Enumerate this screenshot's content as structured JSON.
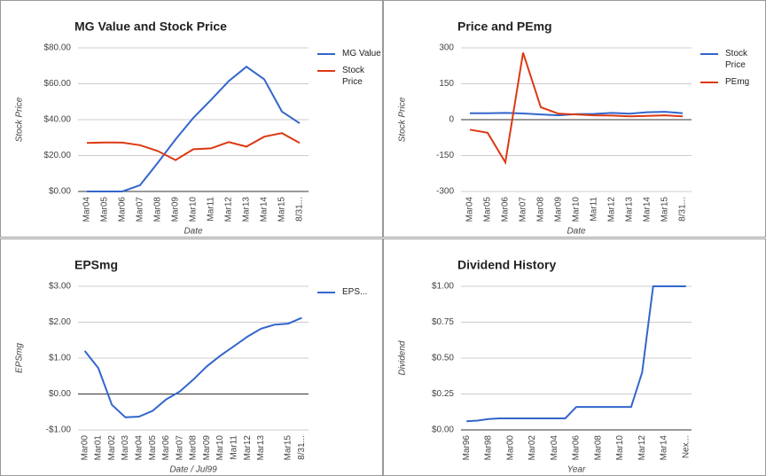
{
  "chart_data": [
    {
      "type": "line",
      "title": "MG Value and Stock Price",
      "x_label": "Date",
      "y_label": "Stock Price",
      "categories": [
        "Mar04",
        "Mar05",
        "Mar06",
        "Mar07",
        "Mar08",
        "Mar09",
        "Mar10",
        "Mar11",
        "Mar12",
        "Mar13",
        "Mar14",
        "Mar15",
        "8/31..."
      ],
      "series": [
        {
          "name": "MG Value",
          "color": "#3366cc",
          "values": [
            0,
            0,
            0,
            3.5,
            16,
            29,
            41,
            51,
            61.5,
            69.5,
            62.5,
            44.5,
            38
          ]
        },
        {
          "name": "Stock Price",
          "color": "#dc3912",
          "values": [
            27,
            27.3,
            27.2,
            25.8,
            22.5,
            17.5,
            23.5,
            24,
            27.5,
            25,
            30.5,
            32.5,
            27
          ]
        }
      ],
      "ylim": [
        0,
        80
      ],
      "yticks": [
        {
          "value": 0,
          "label": "$0.00"
        },
        {
          "value": 20,
          "label": "$20.00"
        },
        {
          "value": 40,
          "label": "$40.00"
        },
        {
          "value": 60,
          "label": "$60.00"
        },
        {
          "value": 80,
          "label": "$80.00"
        }
      ],
      "grid": true,
      "legend": "right"
    },
    {
      "type": "line",
      "title": "Price and PEmg",
      "x_label": "Date",
      "y_label": "Stock Price",
      "categories": [
        "Mar04",
        "Mar05",
        "Mar06",
        "Mar07",
        "Mar08",
        "Mar09",
        "Mar10",
        "Mar11",
        "Mar12",
        "Mar13",
        "Mar14",
        "Mar15",
        "8/31..."
      ],
      "series": [
        {
          "name": "Stock Price",
          "color": "#3366cc",
          "values": [
            27,
            27,
            28,
            26,
            22,
            18,
            23,
            24,
            28,
            25,
            31,
            33,
            27
          ]
        },
        {
          "name": "PEmg",
          "color": "#dc3912",
          "values": [
            -42,
            -55,
            -178,
            280,
            52,
            25,
            22,
            18,
            17,
            14,
            16,
            18,
            14
          ]
        }
      ],
      "ylim": [
        -300,
        300
      ],
      "yticks": [
        -300,
        -150,
        0,
        150,
        300
      ],
      "grid": true,
      "legend": "right"
    },
    {
      "type": "line",
      "title": "EPSmg",
      "x_label": "Date / Jul99",
      "y_label": "EPSmg",
      "categories": [
        "Mar00",
        "Mar01",
        "Mar02",
        "Mar03",
        "Mar04",
        "Mar05",
        "Mar06",
        "Mar07",
        "Mar08",
        "Mar09",
        "Mar10",
        "Mar11",
        "Mar12",
        "Mar13",
        null,
        "Mar15",
        "8/31..."
      ],
      "series": [
        {
          "name": "EPS...",
          "color": "#3366cc",
          "values": [
            1.2,
            0.72,
            -0.3,
            -0.65,
            -0.63,
            -0.47,
            -0.15,
            0.07,
            0.4,
            0.77,
            1.07,
            1.33,
            1.6,
            1.82,
            1.93,
            1.96,
            2.12
          ]
        }
      ],
      "ylim": [
        -1,
        3
      ],
      "yticks": [
        {
          "value": -1,
          "label": "-$1.00"
        },
        {
          "value": 0,
          "label": "$0.00"
        },
        {
          "value": 1,
          "label": "$1.00"
        },
        {
          "value": 2,
          "label": "$2.00"
        },
        {
          "value": 3,
          "label": "$3.00"
        }
      ],
      "grid": true,
      "legend": "right"
    },
    {
      "type": "line",
      "title": "Dividend History",
      "x_label": "Year",
      "y_label": "Dividend",
      "categories": [
        "Mar96",
        null,
        "Mar98",
        null,
        "Mar00",
        null,
        "Mar02",
        null,
        "Mar04",
        null,
        "Mar06",
        null,
        "Mar08",
        null,
        "Mar10",
        null,
        "Mar12",
        null,
        "Mar14",
        null,
        "Nex..."
      ],
      "series": [
        {
          "color": "#3366cc",
          "values": [
            0.06,
            0.065,
            0.075,
            0.08,
            0.08,
            0.08,
            0.08,
            0.08,
            0.08,
            0.08,
            0.16,
            0.16,
            0.16,
            0.16,
            0.16,
            0.16,
            0.4,
            1,
            1,
            1,
            1
          ]
        }
      ],
      "ylim": [
        0,
        1
      ],
      "yticks": [
        {
          "value": 0,
          "label": "$0.00"
        },
        {
          "value": 0.25,
          "label": "$0.25"
        },
        {
          "value": 0.5,
          "label": "$0.50"
        },
        {
          "value": 0.75,
          "label": "$0.75"
        },
        {
          "value": 1,
          "label": "$1.00"
        }
      ],
      "grid": true
    }
  ]
}
